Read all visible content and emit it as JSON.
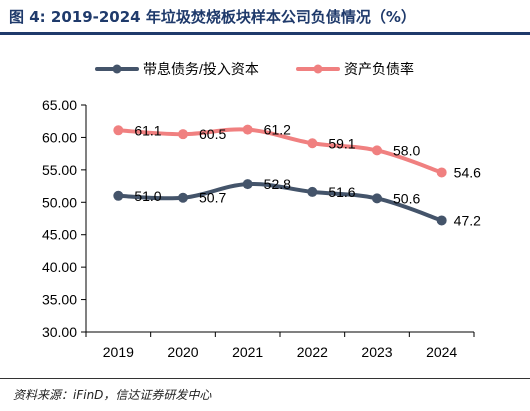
{
  "header": {
    "title": "图 4:  2019-2024 年垃圾焚烧板块样本公司负债情况（%）"
  },
  "source": {
    "text": "资料来源：iFinD，信达证券研发中心"
  },
  "colors": {
    "title": "#1f3a6b",
    "series_1": "#44546a",
    "series_2": "#f08080",
    "axis": "#000000"
  },
  "chart_data": {
    "type": "line",
    "title": "",
    "xlabel": "",
    "ylabel": "",
    "x": [
      "2019",
      "2020",
      "2021",
      "2022",
      "2023",
      "2024"
    ],
    "ylim": [
      30.0,
      65.0
    ],
    "yticks": [
      "65.00",
      "60.00",
      "55.00",
      "50.00",
      "45.00",
      "40.00",
      "35.00",
      "30.00"
    ],
    "grid": false,
    "legend_placement": "top",
    "series": [
      {
        "name": "带息债务/投入资本",
        "values": [
          51.0,
          50.7,
          52.8,
          51.6,
          50.6,
          47.2
        ],
        "labels": [
          "51.0",
          "50.7",
          "52.8",
          "51.6",
          "50.6",
          "47.2"
        ]
      },
      {
        "name": "资产负债率",
        "values": [
          61.1,
          60.5,
          61.2,
          59.1,
          58.0,
          54.6
        ],
        "labels": [
          "61.1",
          "60.5",
          "61.2",
          "59.1",
          "58.0",
          "54.6"
        ]
      }
    ]
  }
}
